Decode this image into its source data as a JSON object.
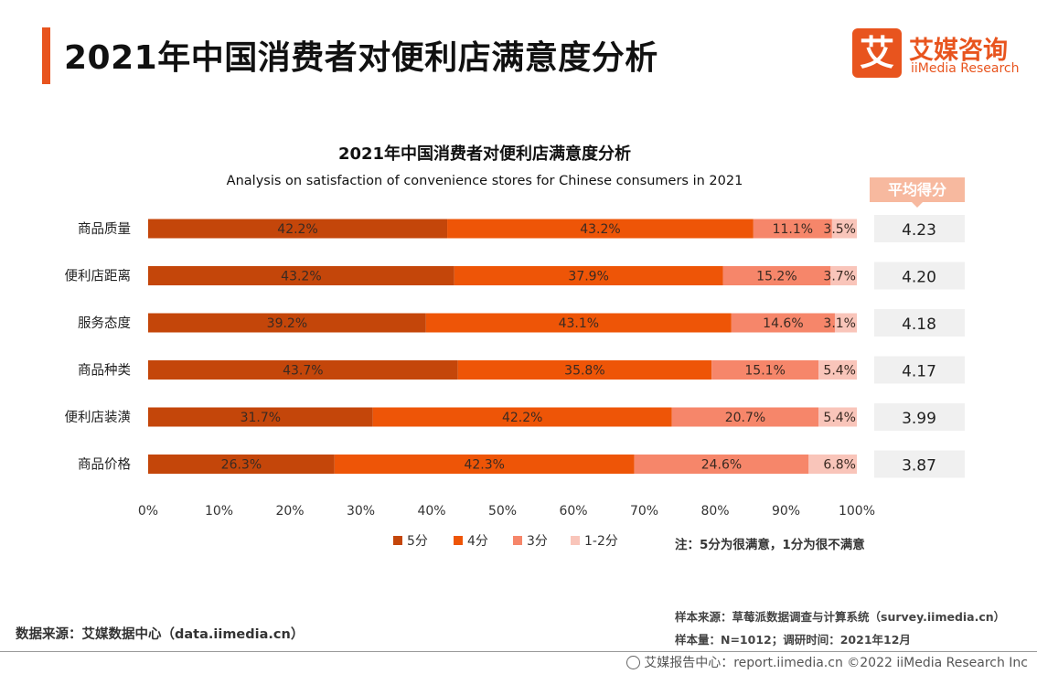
{
  "header": {
    "title": "2021年中国消费者对便利店满意度分析"
  },
  "logo": {
    "mark": "艾",
    "name_cn": "艾媒咨询",
    "name_en": "iiMedia Research"
  },
  "avg_header": "平均得分",
  "note": "注：5分为很满意，1分为很不满意",
  "source": {
    "left": "数据来源：艾媒数据中心（data.iimedia.cn）",
    "sample_source": "样本来源：草莓派数据调查与计算系统（survey.iimedia.cn）",
    "sample_size": "样本量：N=1012；调研时间：2021年12月"
  },
  "footer": {
    "text": "艾媒报告中心：report.iimedia.cn    ©2022  iiMedia Research  Inc"
  },
  "colors": {
    "s5": "#c4460a",
    "s4": "#ee5507",
    "s3": "#f6866a",
    "s12": "#f9c5ba",
    "avg_bg": "#f0f0f0",
    "accent": "#e8541e"
  },
  "chart_data": {
    "type": "bar",
    "orientation": "horizontal-stacked-100",
    "title": "2021年中国消费者对便利店满意度分析",
    "subtitle": "Analysis on satisfaction of convenience stores for Chinese consumers in 2021",
    "categories": [
      "商品质量",
      "便利店距离",
      "服务态度",
      "商品种类",
      "便利店装潢",
      "商品价格"
    ],
    "series": [
      {
        "name": "5分",
        "values": [
          42.2,
          43.2,
          39.2,
          43.7,
          31.7,
          26.3
        ]
      },
      {
        "name": "4分",
        "values": [
          43.2,
          37.9,
          43.1,
          35.8,
          42.2,
          42.3
        ]
      },
      {
        "name": "3分",
        "values": [
          11.1,
          15.2,
          14.6,
          15.1,
          20.7,
          24.6
        ]
      },
      {
        "name": "1-2分",
        "values": [
          3.5,
          3.7,
          3.1,
          5.4,
          5.4,
          6.8
        ]
      }
    ],
    "average_scores": [
      "4.23",
      "4.20",
      "4.18",
      "4.17",
      "3.99",
      "3.87"
    ],
    "xlim": [
      0,
      100
    ],
    "xticks": [
      "0%",
      "10%",
      "20%",
      "30%",
      "40%",
      "50%",
      "60%",
      "70%",
      "80%",
      "90%",
      "100%"
    ],
    "legend_position": "bottom"
  }
}
